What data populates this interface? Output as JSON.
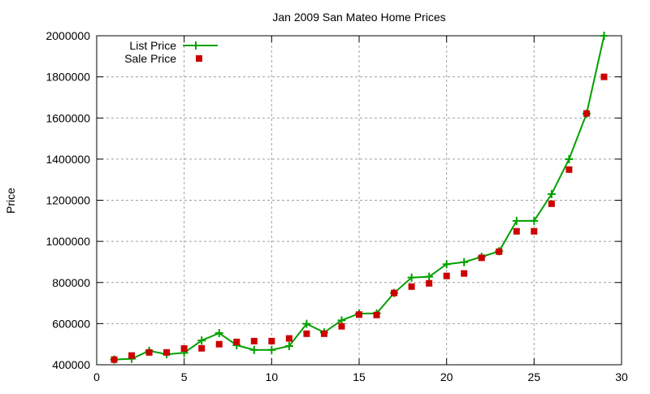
{
  "chart_data": {
    "type": "line",
    "title": "Jan 2009 San Mateo Home Prices",
    "xlabel": "",
    "ylabel": "Price",
    "xlim": [
      0,
      30
    ],
    "ylim": [
      400000,
      2000000
    ],
    "xticks": [
      0,
      5,
      10,
      15,
      20,
      25,
      30
    ],
    "yticks": [
      400000,
      600000,
      800000,
      1000000,
      1200000,
      1400000,
      1600000,
      1800000,
      2000000
    ],
    "grid": true,
    "legend_placement": "top-left",
    "x": [
      1,
      2,
      3,
      4,
      5,
      6,
      7,
      8,
      9,
      10,
      11,
      12,
      13,
      14,
      15,
      16,
      17,
      18,
      19,
      20,
      21,
      22,
      23,
      24,
      25,
      26,
      27,
      28,
      29
    ],
    "series": [
      {
        "name": "List Price",
        "style": "linespoints",
        "color": "#00a000",
        "marker": "plus",
        "values": [
          425000,
          429000,
          468000,
          451000,
          458000,
          518000,
          554000,
          495000,
          472000,
          472000,
          491000,
          599000,
          557000,
          616000,
          649000,
          650000,
          749000,
          824000,
          828000,
          889000,
          899000,
          925000,
          952000,
          1100000,
          1100000,
          1230000,
          1400000,
          1621000,
          2000000
        ]
      },
      {
        "name": "Sale Price",
        "style": "points",
        "color": "#cc0000",
        "marker": "square",
        "values": [
          425000,
          445000,
          460000,
          460000,
          479000,
          480000,
          500000,
          511000,
          515000,
          515000,
          528000,
          551000,
          551000,
          587000,
          644000,
          642000,
          749000,
          780000,
          796000,
          832000,
          844000,
          920000,
          950000,
          1049000,
          1049000,
          1183000,
          1349000,
          1622000,
          1800000
        ]
      }
    ]
  }
}
